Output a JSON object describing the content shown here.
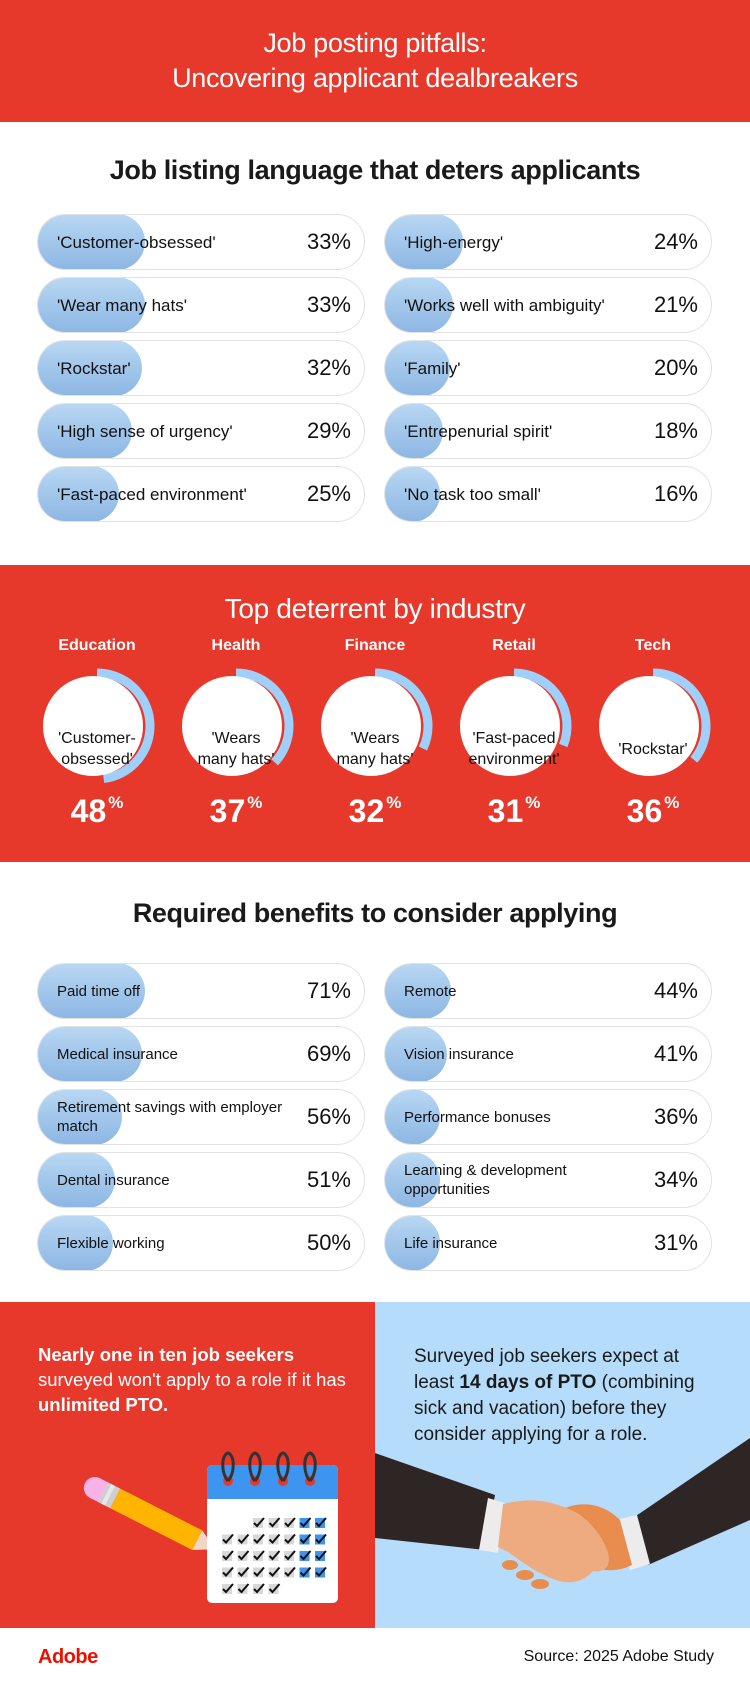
{
  "header": {
    "line1": "Job posting pitfalls:",
    "line2": "Uncovering applicant dealbreakers"
  },
  "colors": {
    "brand_red": "#e6392b",
    "bar_blue": "#8cb6e3",
    "ring_blue": "#9fd0fb",
    "panel_blue": "#b6dcfb",
    "adobe_red": "#eb1000"
  },
  "chart_data": [
    {
      "type": "bar",
      "title": "Job listing language that deters applicants",
      "unit": "%",
      "categories": [
        "'Customer-obsessed'",
        "'Wear many hats'",
        "'Rockstar'",
        "'High sense of urgency'",
        "'Fast-paced environment'",
        "'High-energy'",
        "'Works well with ambiguity'",
        "'Family'",
        "'Entrepenurial spirit'",
        "'No task too small'"
      ],
      "values": [
        33,
        33,
        32,
        29,
        25,
        24,
        21,
        20,
        18,
        16
      ],
      "labels": [
        "33%",
        "33%",
        "32%",
        "29%",
        "25%",
        "24%",
        "21%",
        "20%",
        "18%",
        "16%"
      ],
      "xlim": [
        0,
        100
      ]
    },
    {
      "type": "pie",
      "title": "Top deterrent by industry",
      "unit": "%",
      "categories": [
        "Education",
        "Health",
        "Finance",
        "Retail",
        "Tech"
      ],
      "terms": [
        "'Customer-obsessed'",
        "'Wears many hats'",
        "'Wears many hats'",
        "'Fast-paced environment'",
        "'Rockstar'"
      ],
      "values": [
        48,
        37,
        32,
        31,
        36
      ],
      "labels": [
        "48",
        "37",
        "32",
        "31",
        "36"
      ]
    },
    {
      "type": "bar",
      "title": "Required benefits to consider applying",
      "unit": "%",
      "categories": [
        "Paid time off",
        "Medical insurance",
        "Retirement savings with employer match",
        "Dental insurance",
        "Flexible working",
        "Remote",
        "Vision insurance",
        "Performance bonuses",
        "Learning & development opportunities",
        "Life insurance"
      ],
      "values": [
        71,
        69,
        56,
        51,
        50,
        44,
        41,
        36,
        34,
        31
      ],
      "labels": [
        "71%",
        "69%",
        "56%",
        "51%",
        "50%",
        "44%",
        "41%",
        "36%",
        "34%",
        "31%"
      ],
      "xlim": [
        0,
        100
      ]
    }
  ],
  "sections": {
    "language": {
      "title": "Job listing language that deters applicants",
      "left": [
        {
          "label": "'Customer-obsessed'",
          "pct": "33%",
          "value": 33
        },
        {
          "label": "'Wear many hats'",
          "pct": "33%",
          "value": 33
        },
        {
          "label": "'Rockstar'",
          "pct": "32%",
          "value": 32
        },
        {
          "label": "'High sense of urgency'",
          "pct": "29%",
          "value": 29
        },
        {
          "label": "'Fast-paced environment'",
          "pct": "25%",
          "value": 25
        }
      ],
      "right": [
        {
          "label": "'High-energy'",
          "pct": "24%",
          "value": 24
        },
        {
          "label": "'Works well with ambiguity'",
          "pct": "21%",
          "value": 21
        },
        {
          "label": "'Family'",
          "pct": "20%",
          "value": 20
        },
        {
          "label": "'Entrepenurial spirit'",
          "pct": "18%",
          "value": 18
        },
        {
          "label": "'No task too small'",
          "pct": "16%",
          "value": 16
        }
      ]
    },
    "industry": {
      "title": "Top deterrent by industry",
      "items": [
        {
          "name": "Education",
          "line1": "'Customer-",
          "line2": "obsessed'",
          "value": 48,
          "num": "48",
          "sym": "%"
        },
        {
          "name": "Health",
          "line1": "'Wears",
          "line2": "many hats'",
          "value": 37,
          "num": "37",
          "sym": "%"
        },
        {
          "name": "Finance",
          "line1": "'Wears",
          "line2": "many hats'",
          "value": 32,
          "num": "32",
          "sym": "%"
        },
        {
          "name": "Retail",
          "line1": "'Fast-paced",
          "line2": "environment'",
          "value": 31,
          "num": "31",
          "sym": "%"
        },
        {
          "name": "Tech",
          "line1": "'Rockstar'",
          "line2": "",
          "value": 36,
          "num": "36",
          "sym": "%"
        }
      ]
    },
    "benefits": {
      "title": "Required benefits to consider applying",
      "left": [
        {
          "label": "Paid time off",
          "pct": "71%",
          "value": 71
        },
        {
          "label": "Medical insurance",
          "pct": "69%",
          "value": 69
        },
        {
          "label": "Retirement savings with employer match",
          "pct": "56%",
          "value": 56
        },
        {
          "label": "Dental insurance",
          "pct": "51%",
          "value": 51
        },
        {
          "label": "Flexible working",
          "pct": "50%",
          "value": 50
        }
      ],
      "right": [
        {
          "label": "Remote",
          "pct": "44%",
          "value": 44
        },
        {
          "label": "Vision insurance",
          "pct": "41%",
          "value": 41
        },
        {
          "label": "Performance bonuses",
          "pct": "36%",
          "value": 36
        },
        {
          "label": "Learning & development opportunities",
          "pct": "34%",
          "value": 34
        },
        {
          "label": "Life insurance",
          "pct": "31%",
          "value": 31
        }
      ]
    }
  },
  "callouts": {
    "left": {
      "bold1": "Nearly one in ten job seekers",
      "text1": " surveyed won't apply to a role if it has ",
      "bold2": "unlimited PTO.",
      "illustration": "calendar-with-pencil"
    },
    "right": {
      "text1": "Surveyed job seekers expect at least ",
      "bold1": "14 days of PTO",
      "text2": " (combining sick and vacation) before they consider applying for a role.",
      "illustration": "handshake"
    }
  },
  "footer": {
    "logo": "Adobe",
    "source": "Source: 2025 Adobe Study"
  }
}
